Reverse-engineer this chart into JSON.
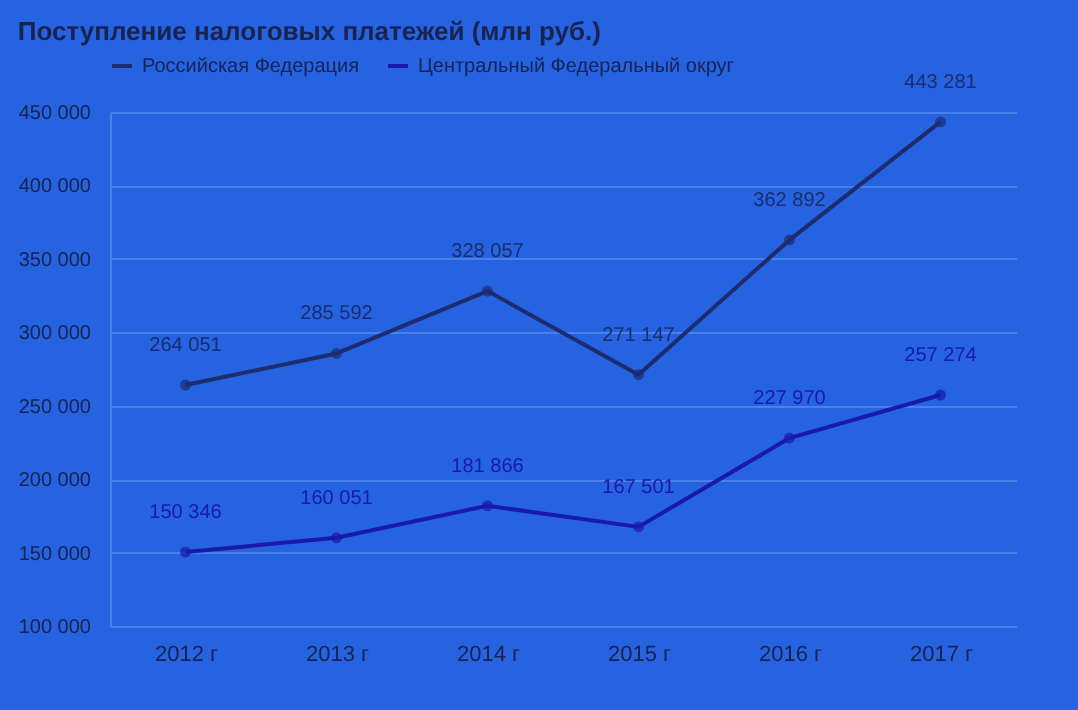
{
  "chart_data": {
    "type": "line",
    "title": "Поступление налоговых платежей (млн руб.)",
    "categories": [
      "2012 г",
      "2013 г",
      "2014 г",
      "2015 г",
      "2016 г",
      "2017 г"
    ],
    "series": [
      {
        "name": "Российская Федерация",
        "color": "#1c2c6e",
        "values": [
          264051,
          285592,
          328057,
          271147,
          362892,
          443281
        ],
        "value_labels": [
          "264 051",
          "285 592",
          "328 057",
          "271 147",
          "362 892",
          "443 281"
        ]
      },
      {
        "name": "Центральный Федеральный округ",
        "color": "#1a1aa8",
        "values": [
          150346,
          160051,
          181866,
          167501,
          227970,
          257274
        ],
        "value_labels": [
          "150 346",
          "160 051",
          "181 866",
          "167 501",
          "227 970",
          "257 274"
        ]
      }
    ],
    "ylim": [
      100000,
      450000
    ],
    "yticks": [
      {
        "value": 100000,
        "label": "100 000"
      },
      {
        "value": 150000,
        "label": "150 000"
      },
      {
        "value": 200000,
        "label": "200 000"
      },
      {
        "value": 250000,
        "label": "250 000"
      },
      {
        "value": 300000,
        "label": "300 000"
      },
      {
        "value": 350000,
        "label": "350 000"
      },
      {
        "value": 400000,
        "label": "400 000"
      },
      {
        "value": 450000,
        "label": "450 000"
      }
    ],
    "grid": "y",
    "legend": "top left",
    "marker": "circle",
    "line_style": "solid"
  }
}
